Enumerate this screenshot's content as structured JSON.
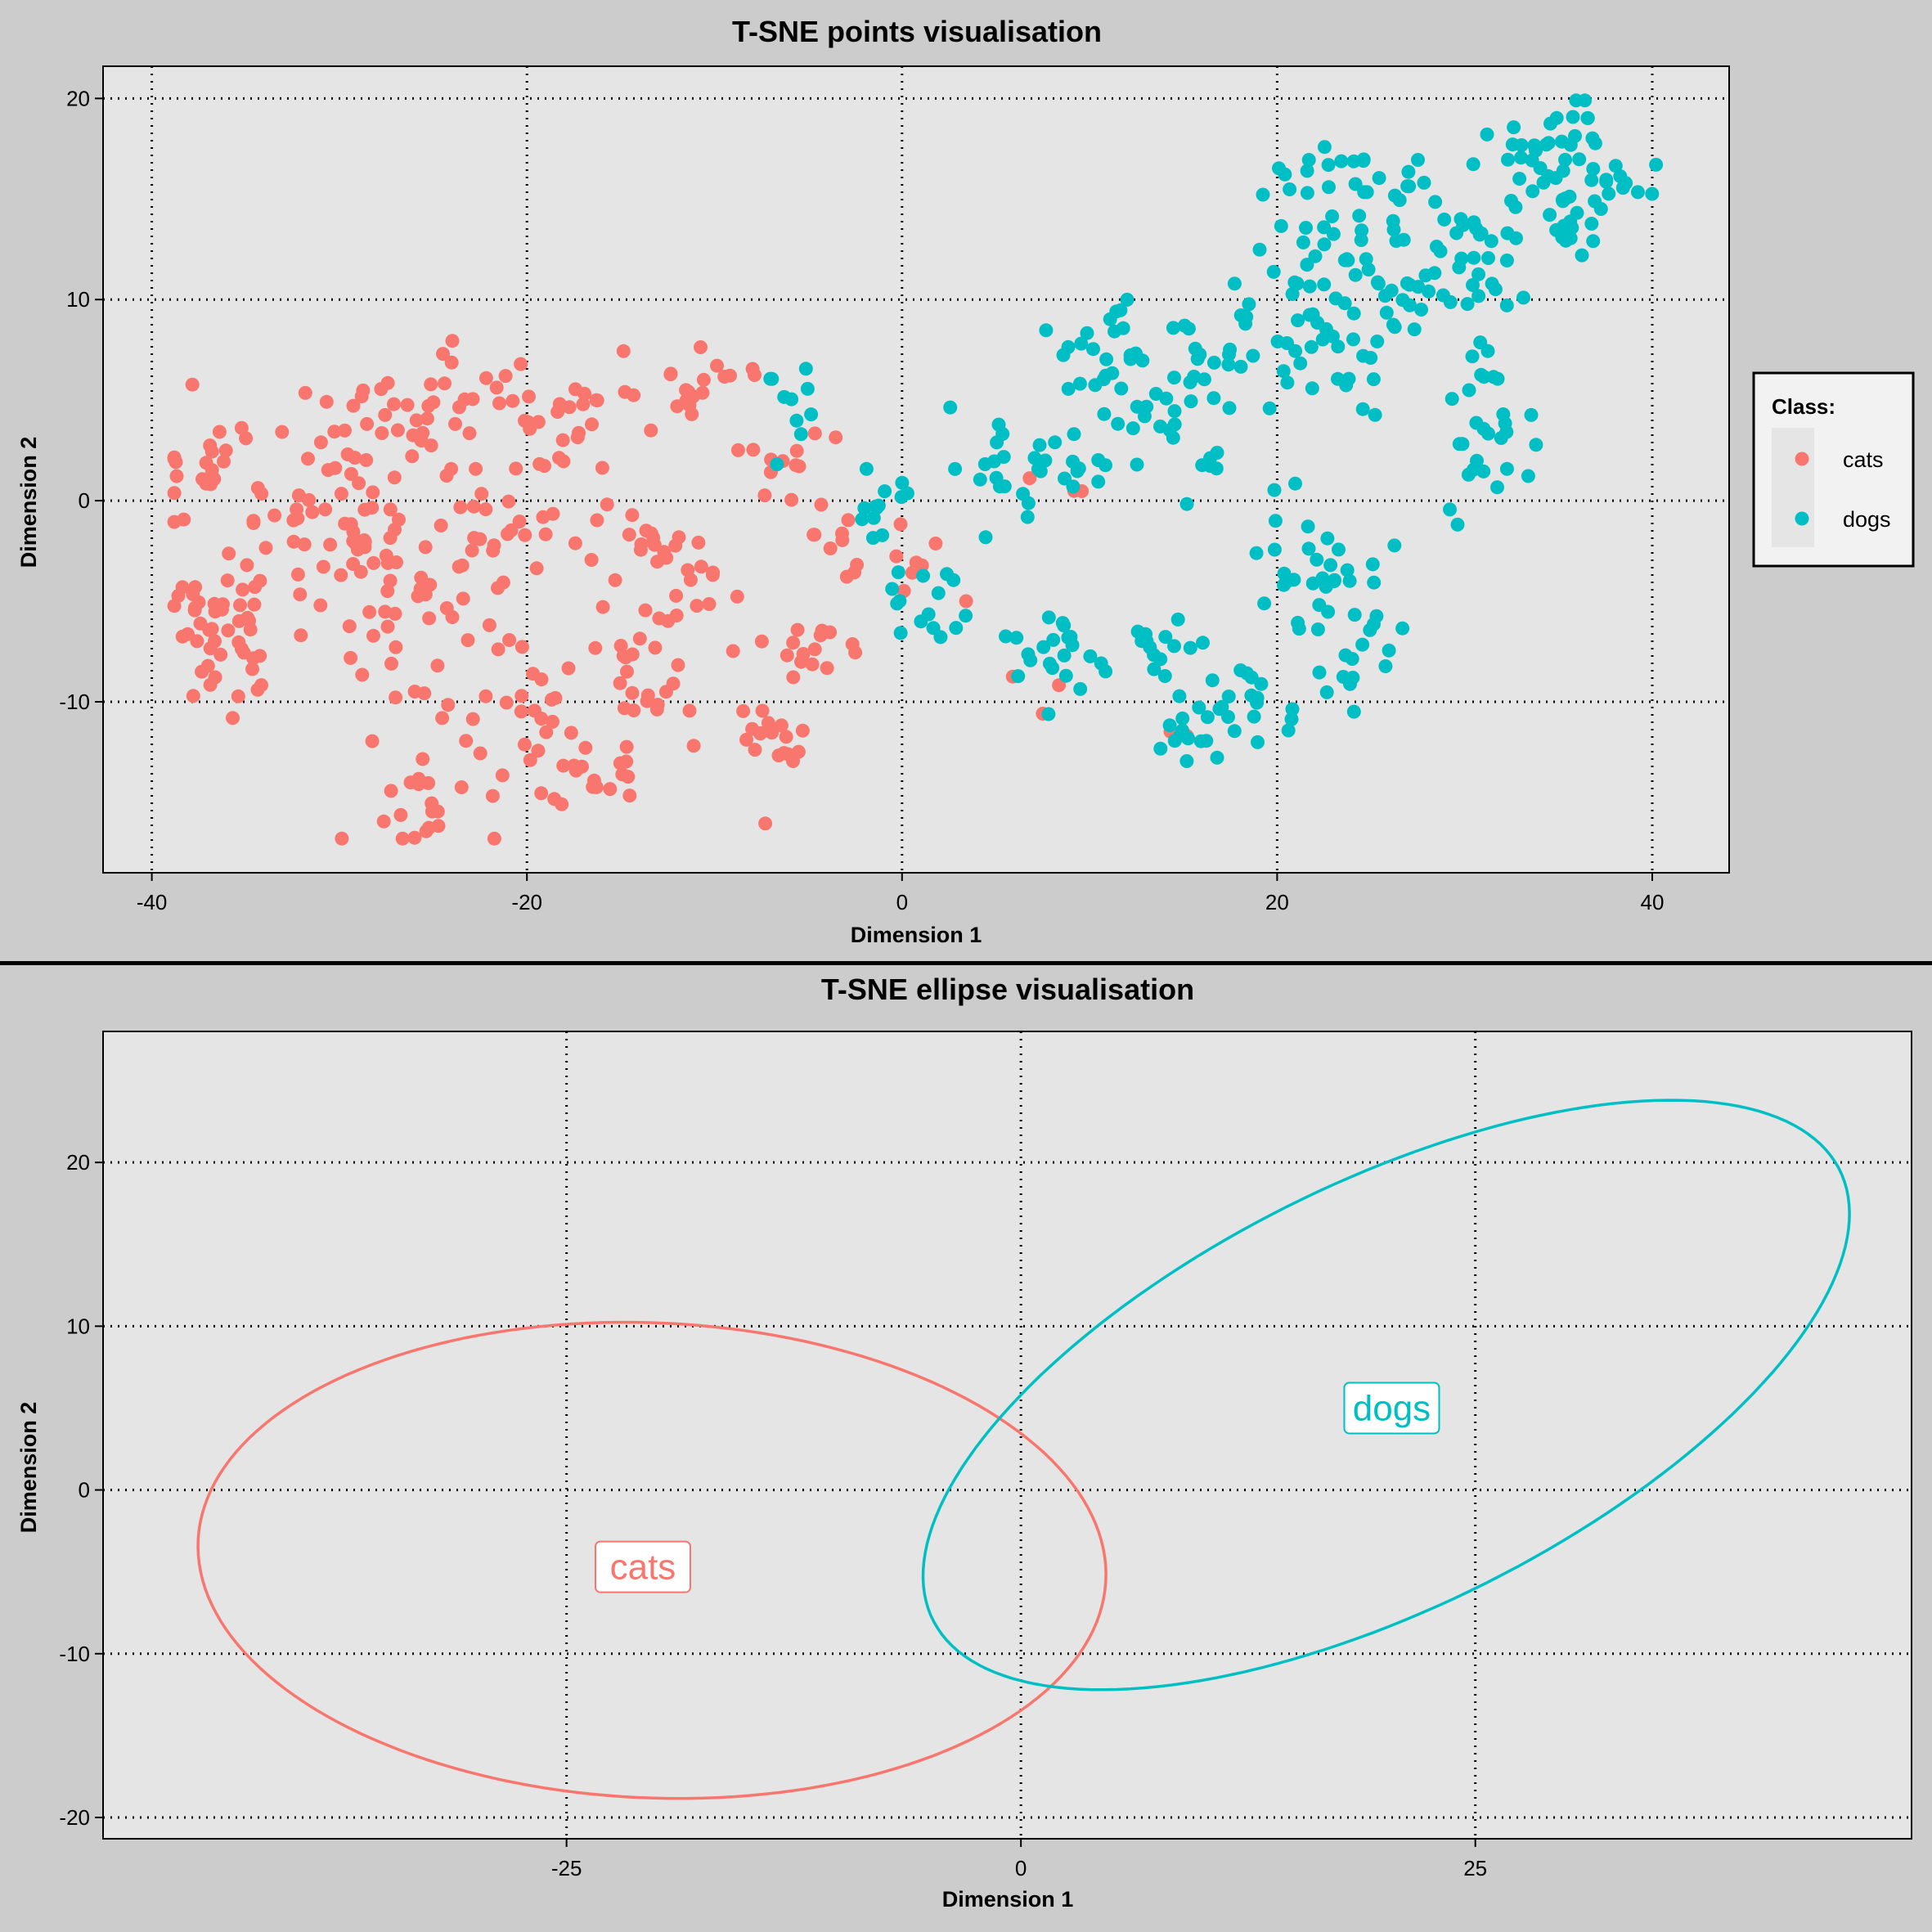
{
  "chart_data": [
    {
      "type": "scatter",
      "title": "T-SNE points visualisation",
      "xlabel": "Dimension 1",
      "ylabel": "Dimension 2",
      "xlim": [
        -42.6,
        44.1
      ],
      "ylim": [
        -18.5,
        21.6
      ],
      "xticks": [
        -40,
        -20,
        0,
        20,
        40
      ],
      "xtick_labels": [
        "-40",
        "-20",
        "0",
        "20",
        "40"
      ],
      "yticks": [
        -10,
        0,
        10,
        20
      ],
      "ytick_labels": [
        "-10",
        "0",
        "10",
        "20"
      ],
      "grid": true,
      "legend": {
        "title": "Class:",
        "position": "right",
        "entries": [
          "cats",
          "dogs"
        ]
      },
      "colors": {
        "cats": "#F8766D",
        "dogs": "#00BFC4"
      },
      "series": [
        {
          "name": "cats",
          "clusters": [
            {
              "cx": -36,
              "cy": -5.5,
              "sx": 2.2,
              "sy": 2.6,
              "n": 60
            },
            {
              "cx": -37,
              "cy": 1.8,
              "sx": 1.6,
              "sy": 1.2,
              "n": 20
            },
            {
              "cx": -30,
              "cy": -1.0,
              "sx": 2.6,
              "sy": 3.2,
              "n": 45
            },
            {
              "cx": -25,
              "cy": -4.5,
              "sx": 2.6,
              "sy": 3.2,
              "n": 40
            },
            {
              "cx": -27,
              "cy": 3.5,
              "sx": 2.4,
              "sy": 1.6,
              "n": 25
            },
            {
              "cx": -23,
              "cy": 5.5,
              "sx": 1.8,
              "sy": 1.0,
              "n": 15
            },
            {
              "cx": -25,
              "cy": -14.5,
              "sx": 1.8,
              "sy": 1.2,
              "n": 22
            },
            {
              "cx": -21,
              "cy": -10.5,
              "sx": 1.8,
              "sy": 1.0,
              "n": 15
            },
            {
              "cx": -20,
              "cy": -1.5,
              "sx": 2.2,
              "sy": 2.6,
              "n": 25
            },
            {
              "cx": -17,
              "cy": 4.5,
              "sx": 2.2,
              "sy": 0.9,
              "n": 22
            },
            {
              "cx": -17,
              "cy": -13.5,
              "sx": 2.2,
              "sy": 1.0,
              "n": 22
            },
            {
              "cx": -14,
              "cy": -8.5,
              "sx": 2.6,
              "sy": 1.6,
              "n": 30
            },
            {
              "cx": -13.5,
              "cy": -2.0,
              "sx": 1.2,
              "sy": 0.8,
              "n": 12
            },
            {
              "cx": -11,
              "cy": -4.5,
              "sx": 1.8,
              "sy": 1.2,
              "n": 14
            },
            {
              "cx": -11,
              "cy": 6.0,
              "sx": 2.2,
              "sy": 0.9,
              "n": 18
            },
            {
              "cx": -7,
              "cy": -12.0,
              "sx": 1.3,
              "sy": 1.0,
              "n": 18
            },
            {
              "cx": -5,
              "cy": -7.5,
              "sx": 1.4,
              "sy": 1.0,
              "n": 14
            },
            {
              "cx": -6,
              "cy": 2.5,
              "sx": 1.2,
              "sy": 1.2,
              "n": 12
            },
            {
              "cx": -3,
              "cy": -2.5,
              "sx": 1.0,
              "sy": 1.0,
              "n": 10
            },
            {
              "cx": 1,
              "cy": -4.0,
              "sx": 1.2,
              "sy": 1.8,
              "n": 8
            },
            {
              "cx": 7.5,
              "cy": -9.0,
              "sx": 1.0,
              "sy": 0.5,
              "n": 3
            },
            {
              "cx": 8,
              "cy": 1.0,
              "sx": 1.0,
              "sy": 0.6,
              "n": 3
            },
            {
              "cx": 15,
              "cy": -11.5,
              "sx": 0.5,
              "sy": 0.3,
              "n": 2
            }
          ]
        },
        {
          "name": "dogs",
          "clusters": [
            {
              "cx": -5.5,
              "cy": 4.8,
              "sx": 1.2,
              "sy": 1.4,
              "n": 10
            },
            {
              "cx": -1.5,
              "cy": -1.0,
              "sx": 0.8,
              "sy": 1.0,
              "n": 10
            },
            {
              "cx": 1.5,
              "cy": -5.5,
              "sx": 1.2,
              "sy": 1.4,
              "n": 15
            },
            {
              "cx": 3,
              "cy": 1.5,
              "sx": 2.0,
              "sy": 2.0,
              "n": 14
            },
            {
              "cx": 7.5,
              "cy": -7.5,
              "sx": 1.5,
              "sy": 1.3,
              "n": 20
            },
            {
              "cx": 8,
              "cy": 1.5,
              "sx": 2.0,
              "sy": 1.2,
              "n": 18
            },
            {
              "cx": 11.5,
              "cy": 7.5,
              "sx": 1.8,
              "sy": 1.6,
              "n": 30
            },
            {
              "cx": 13.5,
              "cy": -7.5,
              "sx": 1.4,
              "sy": 0.8,
              "n": 15
            },
            {
              "cx": 15.5,
              "cy": -11.5,
              "sx": 1.2,
              "sy": 0.8,
              "n": 15
            },
            {
              "cx": 14.5,
              "cy": 3.0,
              "sx": 1.8,
              "sy": 1.4,
              "n": 20
            },
            {
              "cx": 16.5,
              "cy": 7.5,
              "sx": 1.5,
              "sy": 1.3,
              "n": 14
            },
            {
              "cx": 18.5,
              "cy": -9.5,
              "sx": 1.6,
              "sy": 1.4,
              "n": 20
            },
            {
              "cx": 21.5,
              "cy": -3.0,
              "sx": 1.8,
              "sy": 1.6,
              "n": 30
            },
            {
              "cx": 24.5,
              "cy": -7.5,
              "sx": 1.5,
              "sy": 1.4,
              "n": 16
            },
            {
              "cx": 20.5,
              "cy": 8.0,
              "sx": 1.8,
              "sy": 1.8,
              "n": 30
            },
            {
              "cx": 23,
              "cy": 12.5,
              "sx": 2.0,
              "sy": 1.6,
              "n": 30
            },
            {
              "cx": 22,
              "cy": 16.0,
              "sx": 1.6,
              "sy": 0.8,
              "n": 15
            },
            {
              "cx": 24.5,
              "cy": 6.5,
              "sx": 1.0,
              "sy": 1.2,
              "n": 8
            },
            {
              "cx": 28,
              "cy": 16.0,
              "sx": 1.6,
              "sy": 0.8,
              "n": 10
            },
            {
              "cx": 30,
              "cy": 12.5,
              "sx": 2.0,
              "sy": 1.6,
              "n": 30
            },
            {
              "cx": 29,
              "cy": 10.0,
              "sx": 1.6,
              "sy": 0.8,
              "n": 10
            },
            {
              "cx": 31.5,
              "cy": 4.0,
              "sx": 1.5,
              "sy": 2.2,
              "n": 30
            },
            {
              "cx": 34.5,
              "cy": 17.0,
              "sx": 1.8,
              "sy": 1.4,
              "n": 40
            },
            {
              "cx": 35.5,
              "cy": 13.5,
              "sx": 1.0,
              "sy": 0.6,
              "n": 12
            },
            {
              "cx": 38.5,
              "cy": 16.0,
              "sx": 1.2,
              "sy": 0.8,
              "n": 10
            },
            {
              "cx": 27,
              "cy": 9.0,
              "sx": 0.8,
              "sy": 0.6,
              "n": 5
            }
          ]
        }
      ]
    },
    {
      "type": "ellipse",
      "title": "T-SNE ellipse visualisation",
      "xlabel": "Dimension 1",
      "ylabel": "Dimension 2",
      "xlim": [
        -50.5,
        49.0
      ],
      "ylim": [
        -21.3,
        28.0
      ],
      "xticks": [
        -25,
        0,
        25
      ],
      "xtick_labels": [
        "-25",
        "0",
        "25"
      ],
      "yticks": [
        -20,
        -10,
        0,
        10,
        20
      ],
      "ytick_labels": [
        "-20",
        "-10",
        "0",
        "10",
        "20"
      ],
      "grid": true,
      "series": [
        {
          "name": "cats",
          "color": "#F8766D",
          "center": [
            -20.3,
            -4.3
          ],
          "semi_major": 25.0,
          "semi_minor": 14.5,
          "angle_deg": -3,
          "label_pos": [
            -20.8,
            -4.7
          ]
        },
        {
          "name": "dogs",
          "color": "#00BFC4",
          "center": [
            20.1,
            5.8
          ],
          "semi_major": 28.5,
          "semi_minor": 12.7,
          "angle_deg": 30,
          "label_pos": [
            20.4,
            5.0
          ]
        }
      ]
    }
  ]
}
